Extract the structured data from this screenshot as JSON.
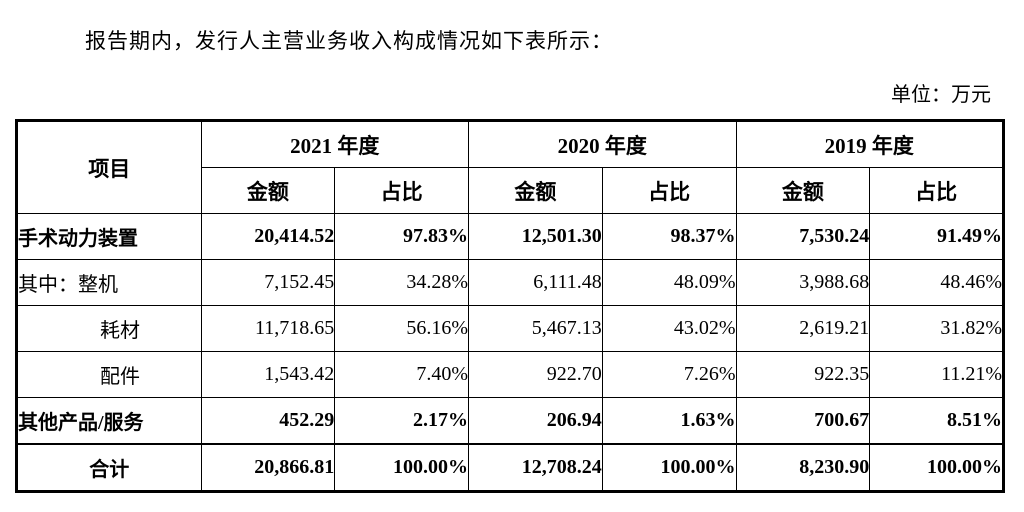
{
  "intro": {
    "text": "报告期内，发行人主营业务收入构成情况如下表所示："
  },
  "unit_label": "单位：万元",
  "table": {
    "item_header": "项目",
    "year_groups": [
      {
        "year": "2021 年度",
        "amount_label": "金额",
        "ratio_label": "占比"
      },
      {
        "year": "2020 年度",
        "amount_label": "金额",
        "ratio_label": "占比"
      },
      {
        "year": "2019 年度",
        "amount_label": "金额",
        "ratio_label": "占比"
      }
    ],
    "rows": [
      {
        "label": "手术动力装置",
        "bold": true,
        "indent": 0,
        "center": false,
        "total": false,
        "values": [
          "20,414.52",
          "97.83%",
          "12,501.30",
          "98.37%",
          "7,530.24",
          "91.49%"
        ]
      },
      {
        "label": "其中：整机",
        "bold": false,
        "indent": 0,
        "center": false,
        "total": false,
        "values": [
          "7,152.45",
          "34.28%",
          "6,111.48",
          "48.09%",
          "3,988.68",
          "48.46%"
        ]
      },
      {
        "label": "耗材",
        "bold": false,
        "indent": 1,
        "center": false,
        "total": false,
        "values": [
          "11,718.65",
          "56.16%",
          "5,467.13",
          "43.02%",
          "2,619.21",
          "31.82%"
        ]
      },
      {
        "label": "配件",
        "bold": false,
        "indent": 1,
        "center": false,
        "total": false,
        "values": [
          "1,543.42",
          "7.40%",
          "922.70",
          "7.26%",
          "922.35",
          "11.21%"
        ]
      },
      {
        "label": "其他产品/服务",
        "bold": true,
        "indent": 0,
        "center": false,
        "total": false,
        "values": [
          "452.29",
          "2.17%",
          "206.94",
          "1.63%",
          "700.67",
          "8.51%"
        ]
      },
      {
        "label": "合计",
        "bold": true,
        "indent": 0,
        "center": true,
        "total": true,
        "values": [
          "20,866.81",
          "100.00%",
          "12,708.24",
          "100.00%",
          "8,230.90",
          "100.00%"
        ]
      }
    ]
  }
}
